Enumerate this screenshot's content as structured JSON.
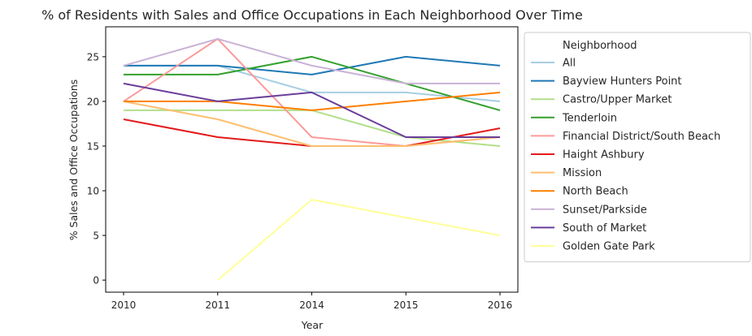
{
  "chart_data": {
    "type": "line",
    "title": "% of Residents with Sales and Office Occupations in Each Neighborhood Over Time",
    "xlabel": "Year",
    "ylabel": "% Sales and Office Occupations",
    "categories": [
      "2010",
      "2011",
      "2014",
      "2015",
      "2016"
    ],
    "y_ticks": [
      0,
      5,
      10,
      15,
      20,
      25
    ],
    "ylim": [
      -1.35,
      28.35
    ],
    "grid": false,
    "legend": {
      "title": "Neighborhood",
      "placement": "outside-right"
    },
    "series": [
      {
        "name": "All",
        "color": "#a6cee3",
        "values": [
          24,
          24,
          21,
          21,
          20
        ]
      },
      {
        "name": "Bayview Hunters Point",
        "color": "#1f78b4",
        "values": [
          24,
          24,
          23,
          25,
          24
        ]
      },
      {
        "name": "Castro/Upper Market",
        "color": "#b2df8a",
        "values": [
          19,
          19,
          19,
          16,
          15
        ]
      },
      {
        "name": "Tenderloin",
        "color": "#33a02c",
        "values": [
          23,
          23,
          25,
          22,
          19
        ]
      },
      {
        "name": "Financial District/South Beach",
        "color": "#fb9a99",
        "values": [
          20,
          27,
          16,
          15,
          16
        ]
      },
      {
        "name": "Haight Ashbury",
        "color": "#e31a1c",
        "values": [
          18,
          16,
          15,
          15,
          17
        ]
      },
      {
        "name": "Mission",
        "color": "#fdbf6f",
        "values": [
          20,
          18,
          15,
          15,
          16
        ]
      },
      {
        "name": "North Beach",
        "color": "#ff7f00",
        "values": [
          20,
          20,
          19,
          20,
          21
        ]
      },
      {
        "name": "Sunset/Parkside",
        "color": "#cab2d6",
        "values": [
          24,
          27,
          24,
          22,
          22
        ]
      },
      {
        "name": "South of Market",
        "color": "#6a3d9a",
        "values": [
          22,
          20,
          21,
          16,
          16
        ]
      },
      {
        "name": "Golden Gate Park",
        "color": "#ffff99",
        "values": [
          null,
          0,
          9,
          7,
          5
        ]
      }
    ]
  }
}
